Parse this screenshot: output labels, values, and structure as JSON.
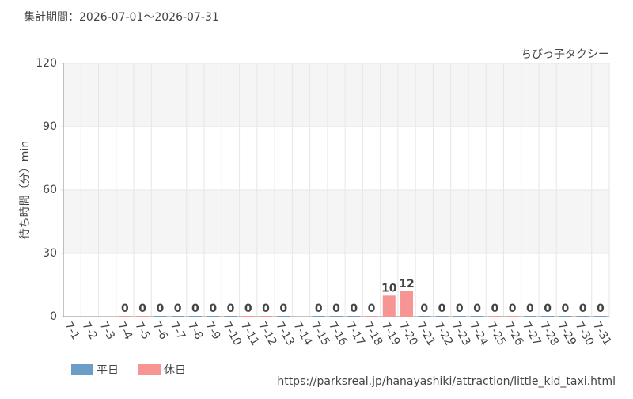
{
  "chart_data": {
    "type": "bar",
    "subtitle": "集計期間：2026-07-01～2026-07-31",
    "title": "ちびっ子タクシー",
    "y_label": "待ち時間（分）min",
    "source": "https://parksreal.jp/hanayashiki/attraction/little_kid_taxi.html",
    "categories": [
      "7-1",
      "7-2",
      "7-3",
      "7-4",
      "7-5",
      "7-6",
      "7-7",
      "7-8",
      "7-9",
      "7-10",
      "7-11",
      "7-12",
      "7-13",
      "7-14",
      "7-15",
      "7-16",
      "7-17",
      "7-18",
      "7-19",
      "7-20",
      "7-21",
      "7-22",
      "7-23",
      "7-24",
      "7-25",
      "7-26",
      "7-27",
      "7-28",
      "7-29",
      "7-30",
      "7-31"
    ],
    "series": [
      {
        "name": "平日",
        "color": "#6b9dc6",
        "values": [
          null,
          null,
          null,
          null,
          null,
          0,
          0,
          0,
          0,
          0,
          null,
          null,
          0,
          null,
          0,
          0,
          0,
          null,
          null,
          null,
          0,
          0,
          0,
          0,
          null,
          null,
          0,
          0,
          0,
          0,
          0
        ]
      },
      {
        "name": "休日",
        "color": "#f79494",
        "values": [
          null,
          null,
          null,
          0,
          0,
          null,
          null,
          null,
          null,
          null,
          0,
          0,
          null,
          null,
          null,
          null,
          null,
          0,
          10,
          12,
          null,
          null,
          null,
          null,
          0,
          0,
          null,
          null,
          null,
          null,
          null
        ]
      }
    ],
    "ylim": [
      0,
      120
    ],
    "yticks": [
      0,
      30,
      60,
      90,
      120
    ],
    "grid": true
  }
}
